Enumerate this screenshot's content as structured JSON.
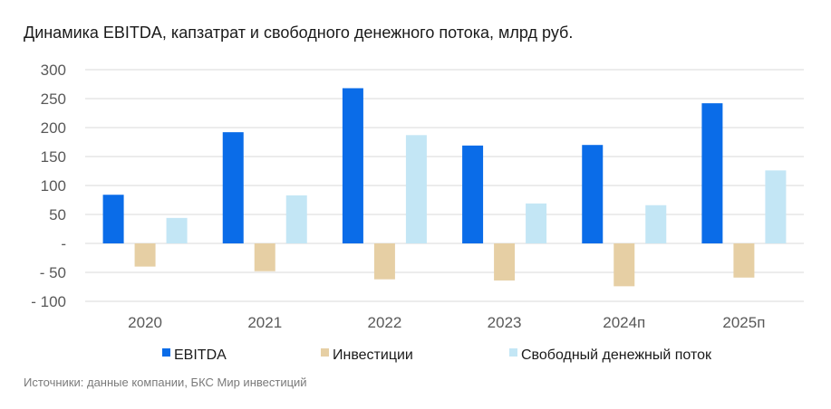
{
  "title": "Динамика EBITDA, капзатрат и свободного денежного потока, млрд руб.",
  "source": "Источники: данные компании, БКС Мир инвестиций",
  "chart_data": {
    "type": "bar",
    "categories": [
      "2020",
      "2021",
      "2022",
      "2023",
      "2024п",
      "2025п"
    ],
    "series": [
      {
        "name": "EBITDA",
        "color": "#0a6ce8",
        "values": [
          84,
          192,
          268,
          169,
          170,
          242
        ]
      },
      {
        "name": "Инвестиции",
        "color": "#e6cfa4",
        "values": [
          -40,
          -48,
          -62,
          -64,
          -74,
          -59
        ]
      },
      {
        "name": "Свободный денежный поток",
        "color": "#c3e6f5",
        "values": [
          44,
          83,
          187,
          69,
          66,
          126
        ]
      }
    ],
    "yticks": [
      300,
      250,
      200,
      150,
      100,
      50,
      0,
      -50,
      -100
    ],
    "ytick_labels": [
      "300",
      "250",
      "200",
      "150",
      "100",
      "50",
      "-",
      "- 50",
      "- 100"
    ],
    "ylim": [
      -100,
      300
    ],
    "grid": true,
    "legend_position": "bottom"
  }
}
